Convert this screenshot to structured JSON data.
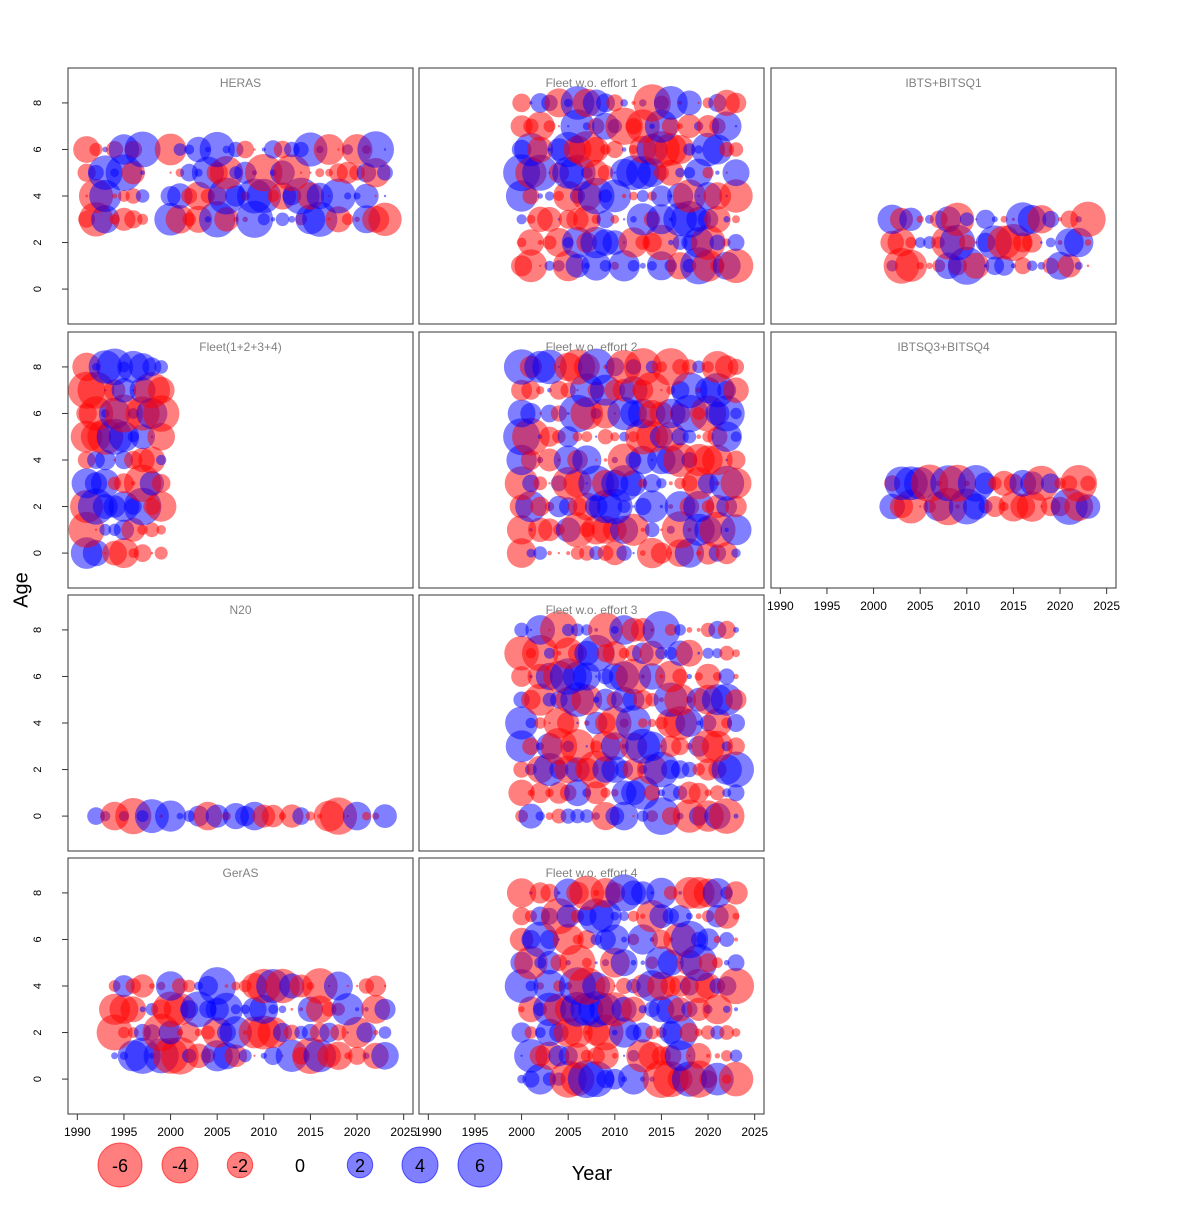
{
  "figure": {
    "y_axis_label": "Age",
    "x_axis_label": "Year"
  },
  "colors": {
    "negative": "#ff0000",
    "positive": "#0000ff",
    "panel_title": "#808080",
    "frame": "#333333"
  },
  "legend": {
    "values": [
      -6,
      -4,
      -2,
      0,
      2,
      4,
      6
    ],
    "labels": [
      "-6",
      "-4",
      "-2",
      "0",
      "2",
      "4",
      "6"
    ]
  },
  "chart_data": {
    "type": "scatter",
    "encoding": "bubble plot of residuals: circle area proportional to absolute residual, red = negative, blue = positive",
    "x_ticks": [
      1990,
      1995,
      2000,
      2005,
      2010,
      2015,
      2020,
      2025
    ],
    "x_tick_labels": [
      "1990",
      "1995",
      "2000",
      "2005",
      "2010",
      "2015",
      "2020",
      "2025"
    ],
    "y_ticks": [
      0,
      2,
      4,
      6,
      8
    ],
    "y_tick_labels": [
      "0",
      "2",
      "4",
      "6",
      "8"
    ],
    "xlim": [
      1989,
      2026
    ],
    "ylim": [
      -1.5,
      9.5
    ],
    "grid": false,
    "legend_placement": "bottom-left",
    "panels": [
      {
        "title": "HERAS",
        "years": [
          1991,
          2023
        ],
        "ages": [
          3,
          6
        ],
        "gap_from": 1998,
        "gap_to": 1999,
        "pattern": 1
      },
      {
        "title": "Fleet w.o. effort 1",
        "years": [
          2000,
          2023
        ],
        "ages": [
          1,
          8
        ],
        "pattern": 2
      },
      {
        "title": "IBTS+BITSQ1",
        "years": [
          2002,
          2023
        ],
        "ages": [
          1,
          3
        ],
        "pattern": 3
      },
      {
        "title": "Fleet(1+2+3+4)",
        "years": [
          1991,
          1999
        ],
        "ages": [
          0,
          8
        ],
        "pattern": 4
      },
      {
        "title": "Fleet w.o. effort 2",
        "years": [
          2000,
          2023
        ],
        "ages": [
          0,
          8
        ],
        "pattern": 5
      },
      {
        "title": "IBTSQ3+BITSQ4",
        "years": [
          2002,
          2023
        ],
        "ages": [
          2,
          3
        ],
        "pattern": 6
      },
      {
        "title": "N20",
        "years": [
          1992,
          2023
        ],
        "ages": [
          0,
          0
        ],
        "pattern": 7
      },
      {
        "title": "Fleet w.o. effort 3",
        "years": [
          2000,
          2023
        ],
        "ages": [
          0,
          8
        ],
        "pattern": 8
      },
      {
        "title": "GerAS",
        "years": [
          1994,
          2023
        ],
        "ages": [
          1,
          4
        ],
        "pattern": 9
      },
      {
        "title": "Fleet w.o. effort 4",
        "years": [
          2000,
          2023
        ],
        "ages": [
          0,
          8
        ],
        "pattern": 10
      }
    ]
  }
}
